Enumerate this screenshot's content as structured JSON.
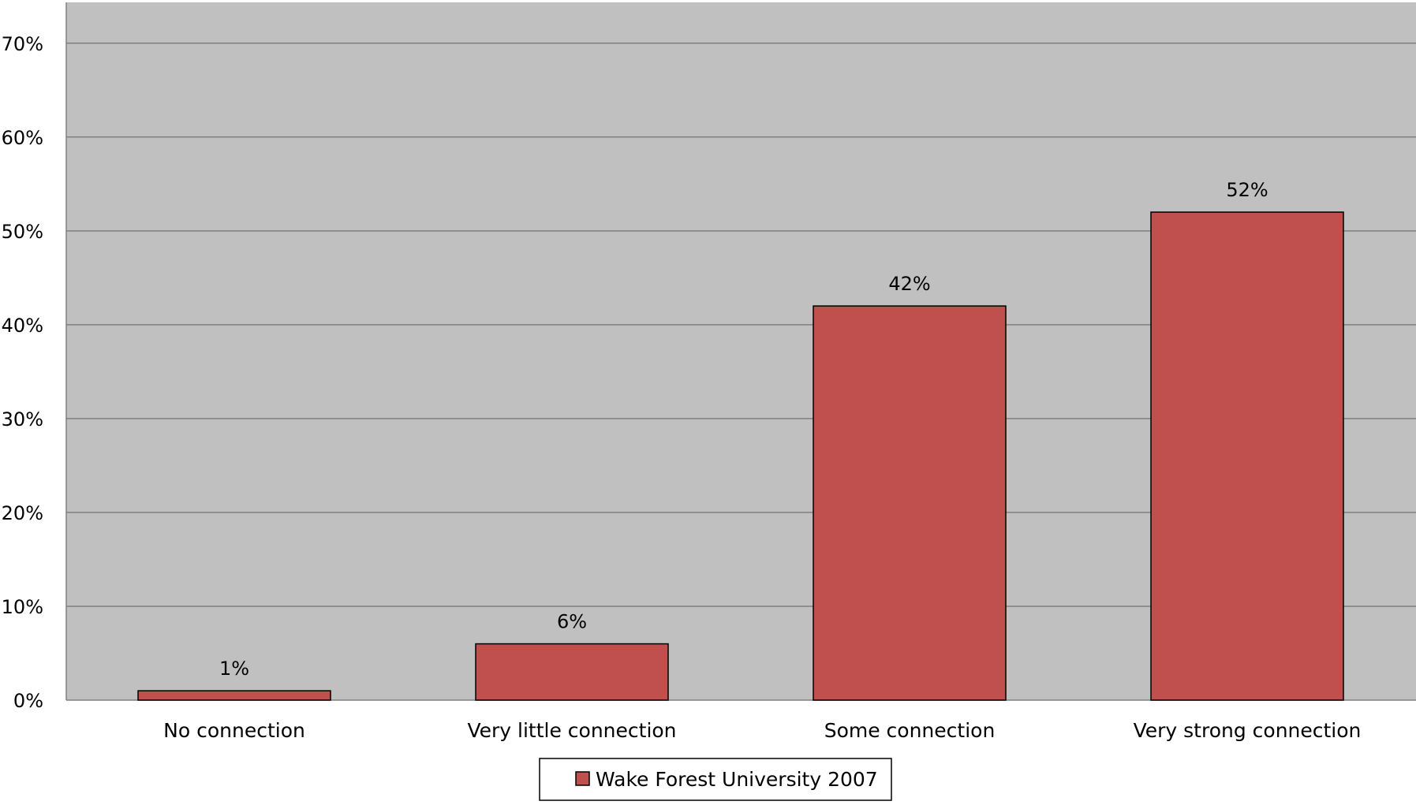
{
  "chart_data": {
    "type": "bar",
    "categories": [
      "No connection",
      "Very little connection",
      "Some connection",
      "Very strong connection"
    ],
    "series": [
      {
        "name": "Wake Forest University 2007",
        "values": [
          1,
          6,
          42,
          52
        ],
        "value_labels": [
          "1%",
          "6%",
          "42%",
          "52%"
        ]
      }
    ],
    "ylim": [
      0,
      70
    ],
    "yticks": [
      0,
      10,
      20,
      30,
      40,
      50,
      60,
      70
    ],
    "ytick_labels": [
      "0%",
      "10%",
      "20%",
      "30%",
      "40%",
      "50%",
      "60%",
      "70%"
    ],
    "grid": true,
    "legend_position": "bottom",
    "colors": {
      "bar": "#c0504d",
      "plot_background": "#c0c0c0",
      "gridline": "#808080"
    }
  }
}
